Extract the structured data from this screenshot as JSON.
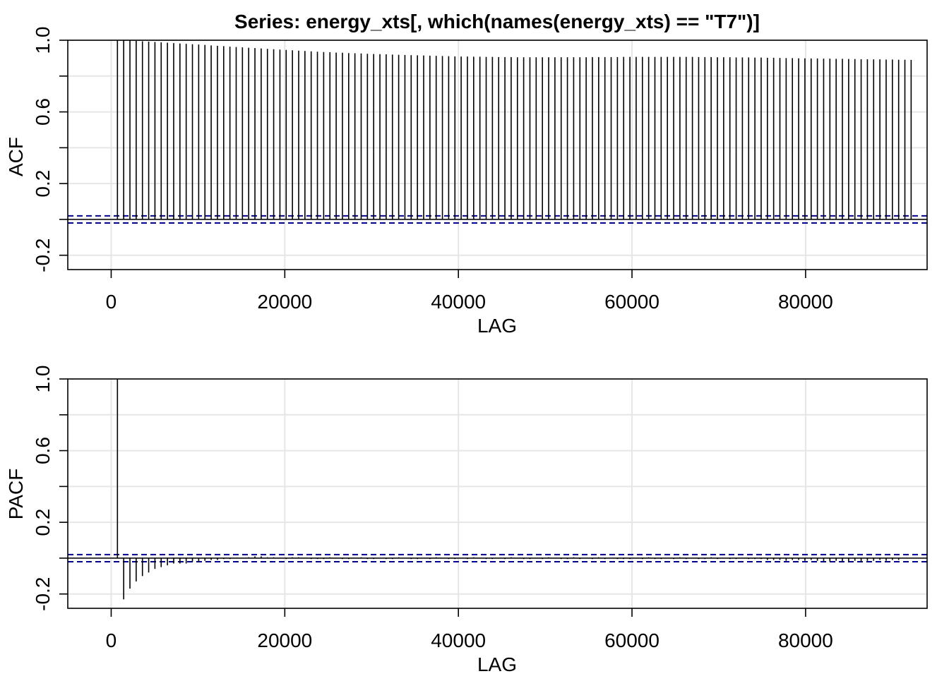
{
  "title": "Series:  energy_xts[, which(names(energy_xts) == \"T7\")]",
  "colors": {
    "background": "#ffffff",
    "grid": "#e6e6e6",
    "frame": "#000000",
    "bars": "#000000",
    "ci_lines": "#00008b"
  },
  "chart_data": [
    {
      "type": "bar",
      "ylabel": "ACF",
      "xlabel": "LAG",
      "xlim": [
        -5000,
        94000
      ],
      "ylim": [
        -0.28,
        1.0
      ],
      "x_ticks": [
        0,
        20000,
        40000,
        60000,
        80000
      ],
      "y_ticks": [
        -0.2,
        0.2,
        0.6,
        1.0
      ],
      "x_tick_labels": [
        "0",
        "20000",
        "40000",
        "60000",
        "80000"
      ],
      "y_tick_labels": [
        "-0.2",
        "0.2",
        "0.6",
        "1.0"
      ],
      "grid": true,
      "confidence_band": [
        -0.02,
        0.02
      ],
      "series": [
        {
          "x_start": 720,
          "x_step": 720,
          "values": [
            1.0,
            0.999,
            0.998,
            0.996,
            0.994,
            0.992,
            0.99,
            0.988,
            0.986,
            0.984,
            0.982,
            0.98,
            0.978,
            0.976,
            0.974,
            0.971,
            0.969,
            0.967,
            0.964,
            0.962,
            0.96,
            0.958,
            0.956,
            0.954,
            0.952,
            0.95,
            0.948,
            0.946,
            0.944,
            0.942,
            0.94,
            0.938,
            0.936,
            0.934,
            0.933,
            0.931,
            0.93,
            0.928,
            0.927,
            0.926,
            0.924,
            0.923,
            0.922,
            0.921,
            0.92,
            0.919,
            0.918,
            0.917,
            0.916,
            0.915,
            0.914,
            0.913,
            0.912,
            0.911,
            0.91,
            0.909,
            0.909,
            0.908,
            0.908,
            0.907,
            0.907,
            0.906,
            0.906,
            0.906,
            0.905,
            0.905,
            0.905,
            0.905,
            0.905,
            0.905,
            0.905,
            0.905,
            0.905,
            0.905,
            0.905,
            0.905,
            0.906,
            0.906,
            0.906,
            0.906,
            0.906,
            0.907,
            0.907,
            0.907,
            0.907,
            0.907,
            0.907,
            0.907,
            0.907,
            0.907,
            0.907,
            0.907,
            0.907,
            0.906,
            0.906,
            0.906,
            0.905,
            0.905,
            0.905,
            0.904,
            0.904,
            0.904,
            0.903,
            0.903,
            0.902,
            0.902,
            0.901,
            0.9,
            0.9,
            0.899,
            0.899,
            0.898,
            0.898,
            0.897,
            0.897,
            0.896,
            0.896,
            0.895,
            0.895,
            0.894,
            0.894,
            0.893,
            0.893,
            0.892,
            0.892,
            0.891,
            0.891,
            0.89
          ]
        }
      ]
    },
    {
      "type": "bar",
      "ylabel": "PACF",
      "xlabel": "LAG",
      "xlim": [
        -5000,
        94000
      ],
      "ylim": [
        -0.28,
        1.0
      ],
      "x_ticks": [
        0,
        20000,
        40000,
        60000,
        80000
      ],
      "y_ticks": [
        -0.2,
        0.2,
        0.6,
        1.0
      ],
      "x_tick_labels": [
        "0",
        "20000",
        "40000",
        "60000",
        "80000"
      ],
      "y_tick_labels": [
        "-0.2",
        "0.2",
        "0.6",
        "1.0"
      ],
      "grid": true,
      "confidence_band": [
        -0.02,
        0.02
      ],
      "series": [
        {
          "x_start": 720,
          "x_step": 720,
          "values": [
            1.0,
            -0.23,
            -0.17,
            -0.13,
            -0.1,
            -0.08,
            -0.06,
            -0.05,
            -0.04,
            -0.03,
            -0.03,
            -0.03,
            -0.02,
            -0.02,
            -0.015,
            -0.01,
            -0.01,
            -0.005,
            -0.005,
            0.0,
            0.0,
            0.005,
            0.01,
            0.01,
            0.005,
            0.005,
            0.0,
            -0.005,
            0.005,
            0.005,
            0.0,
            -0.005,
            -0.005,
            -0.005,
            0.005,
            0.0,
            -0.005,
            -0.005,
            0.0,
            0.005,
            -0.005,
            -0.005,
            0.0,
            -0.005,
            -0.005,
            0.005,
            0.0,
            -0.005,
            -0.005,
            0.0,
            -0.005,
            0.005,
            0.0,
            -0.005,
            -0.005,
            0.0,
            -0.005,
            0.005,
            0.0,
            -0.005,
            -0.005,
            0.0,
            -0.005,
            0.005,
            0.0,
            -0.005,
            -0.005,
            0.0,
            -0.005,
            0.005,
            0.0,
            -0.005,
            -0.005,
            0.005,
            -0.005,
            0.0,
            -0.005,
            0.005,
            -0.005,
            0.0,
            -0.005,
            -0.005,
            -0.005,
            0.0,
            -0.005,
            0.005,
            -0.005,
            -0.005,
            0.0,
            -0.005,
            0.005,
            -0.005,
            0.0,
            -0.005,
            -0.005,
            0.005,
            -0.005,
            0.0,
            -0.005,
            -0.005,
            0.0,
            -0.005,
            -0.005,
            -0.005,
            -0.01,
            -0.01,
            -0.01,
            -0.015,
            -0.01,
            -0.01,
            -0.015,
            -0.01,
            -0.015,
            -0.02,
            -0.02,
            -0.015,
            -0.02,
            -0.02,
            -0.015,
            -0.02,
            -0.015,
            -0.015,
            -0.01,
            -0.015,
            -0.01,
            -0.01
          ]
        }
      ]
    }
  ]
}
